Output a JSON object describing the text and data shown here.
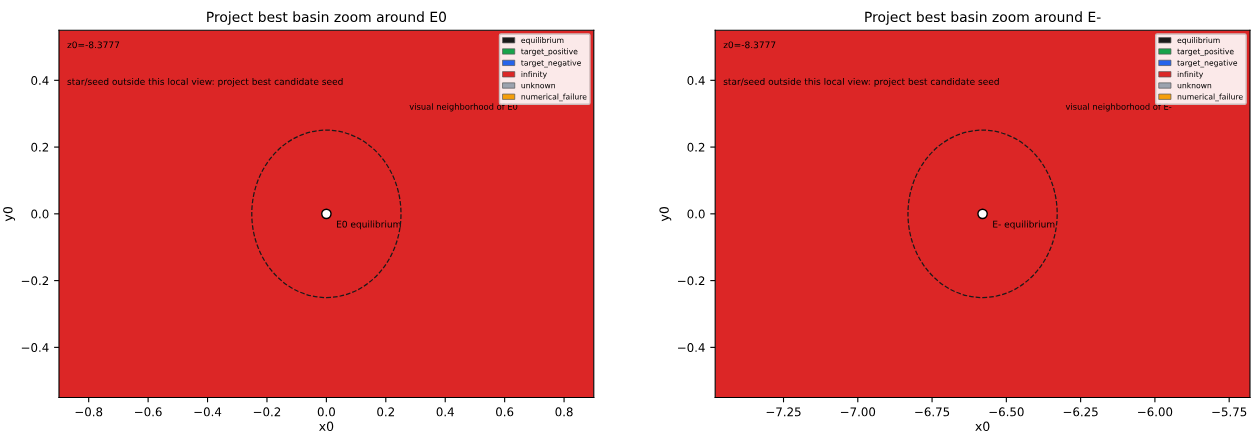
{
  "chart_data": [
    {
      "type": "scatter",
      "title": "Project best basin zoom around E0",
      "xlabel": "x0",
      "ylabel": "y0",
      "xlim": [
        -0.9,
        0.9
      ],
      "ylim": [
        -0.55,
        0.55
      ],
      "xticks": [
        -0.8,
        -0.6,
        -0.4,
        -0.2,
        {
          "value": 0,
          "label": "0.0"
        },
        0.2,
        0.4,
        0.6,
        0.8
      ],
      "yticks": [
        -0.4,
        -0.2,
        {
          "value": 0,
          "label": "0.0"
        },
        0.2,
        0.4
      ],
      "bands": [
        {
          "axis": "x",
          "from": -0.9,
          "to": 0.9,
          "color": "#dc2626"
        }
      ],
      "series": [
        {
          "color": "#ffffff",
          "x": [
            0.0
          ],
          "values": [
            0.0
          ],
          "marker": "circle"
        },
        {
          "name": "equilibrium",
          "color": "#1a1a1a"
        },
        {
          "name": "target_positive",
          "color": "#16a34a"
        },
        {
          "name": "target_negative",
          "color": "#2563eb"
        },
        {
          "name": "infinity",
          "color": "#dc2626"
        },
        {
          "name": "unknown",
          "color": "#9ca3af"
        },
        {
          "name": "numerical_failure",
          "color": "#f59e0b"
        }
      ],
      "annotations": [
        "z0=-8.3777",
        "star/seed outside this local view: project best candidate seed",
        {
          "text": "E0 equilibrium",
          "x": 0.0,
          "y": 0.0
        },
        "visual neighborhood of E0"
      ],
      "legend": "top right"
    },
    {
      "type": "scatter",
      "title": "Project best basin zoom around E-",
      "xlabel": "x0",
      "ylabel": "y0",
      "xlim": [
        -7.48,
        -5.68
      ],
      "ylim": [
        -0.55,
        0.55
      ],
      "xticks": [
        -7.25,
        {
          "value": -7,
          "label": "−7.00"
        },
        -6.75,
        {
          "value": -6.5,
          "label": "−6.50"
        },
        -6.25,
        {
          "value": -6,
          "label": "−6.00"
        },
        -5.75
      ],
      "yticks": [
        -0.4,
        -0.2,
        {
          "value": 0,
          "label": "0.0"
        },
        0.2,
        0.4
      ],
      "bands": [
        {
          "axis": "x",
          "from": -7.48,
          "to": -5.68,
          "color": "#dc2626"
        }
      ],
      "series": [
        {
          "color": "#ffffff",
          "x": [
            -6.58
          ],
          "values": [
            0.0
          ],
          "marker": "circle"
        },
        {
          "name": "equilibrium",
          "color": "#1a1a1a"
        },
        {
          "name": "target_positive",
          "color": "#16a34a"
        },
        {
          "name": "target_negative",
          "color": "#2563eb"
        },
        {
          "name": "infinity",
          "color": "#dc2626"
        },
        {
          "name": "unknown",
          "color": "#9ca3af"
        },
        {
          "name": "numerical_failure",
          "color": "#f59e0b"
        }
      ],
      "annotations": [
        "z0=-8.3777",
        "star/seed outside this local view: project best candidate seed",
        {
          "text": "E- equilibrium",
          "x": -6.58,
          "y": 0.0
        },
        "visual neighborhood of E-"
      ],
      "legend": "top right"
    }
  ]
}
